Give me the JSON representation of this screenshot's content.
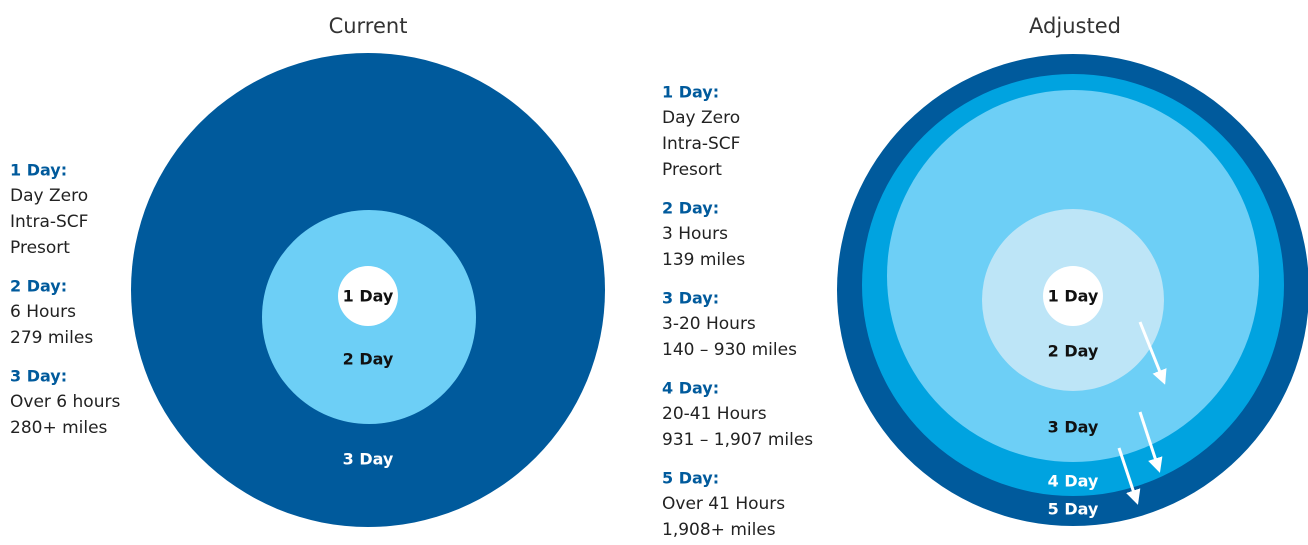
{
  "current": {
    "title": "Current",
    "rings": [
      "1 Day",
      "2 Day",
      "3 Day"
    ],
    "legend": [
      {
        "heading": "1 Day:",
        "lines": [
          "Day Zero",
          "Intra-SCF",
          "Presort"
        ]
      },
      {
        "heading": "2 Day:",
        "lines": [
          "6 Hours",
          "279 miles"
        ]
      },
      {
        "heading": "3 Day:",
        "lines": [
          "Over 6 hours",
          "280+ miles"
        ]
      }
    ]
  },
  "adjusted": {
    "title": "Adjusted",
    "rings": [
      "1 Day",
      "2 Day",
      "3 Day",
      "4 Day",
      "5 Day"
    ],
    "legend": [
      {
        "heading": "1 Day:",
        "lines": [
          "Day Zero",
          "Intra-SCF",
          "Presort"
        ]
      },
      {
        "heading": "2 Day:",
        "lines": [
          "3 Hours",
          "139 miles"
        ]
      },
      {
        "heading": "3 Day:",
        "lines": [
          "3-20 Hours",
          "140 – 930 miles"
        ]
      },
      {
        "heading": "4 Day:",
        "lines": [
          "20-41 Hours",
          "931 – 1,907 miles"
        ]
      },
      {
        "heading": "5 Day:",
        "lines": [
          "Over 41 Hours",
          "1,908+ miles"
        ]
      }
    ]
  }
}
